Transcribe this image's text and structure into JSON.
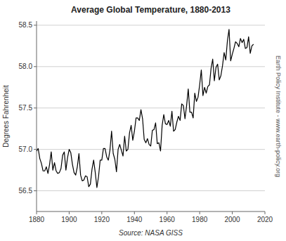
{
  "chart_data": {
    "type": "line",
    "title": "Average Global Temperature, 1880-2013",
    "xlabel": "Source: NASA GISS",
    "ylabel": "Degrees Fahrenheit",
    "annotation": "Earth Policy Institute - www.earth-policy.org",
    "color": "#000000",
    "grid": true,
    "xlim": [
      1880,
      2020
    ],
    "ylim": [
      56.25,
      58.55
    ],
    "xticks": [
      1880,
      1900,
      1920,
      1940,
      1960,
      1980,
      2000,
      2020
    ],
    "yticks": [
      56.5,
      {
        "value": 57,
        "label": "57.0"
      },
      57.5,
      {
        "value": 58,
        "label": "58.0"
      },
      58.5
    ],
    "x": [
      1880,
      1881,
      1882,
      1883,
      1884,
      1885,
      1886,
      1887,
      1888,
      1889,
      1890,
      1891,
      1892,
      1893,
      1894,
      1895,
      1896,
      1897,
      1898,
      1899,
      1900,
      1901,
      1902,
      1903,
      1904,
      1905,
      1906,
      1907,
      1908,
      1909,
      1910,
      1911,
      1912,
      1913,
      1914,
      1915,
      1916,
      1917,
      1918,
      1919,
      1920,
      1921,
      1922,
      1923,
      1924,
      1925,
      1926,
      1927,
      1928,
      1929,
      1930,
      1931,
      1932,
      1933,
      1934,
      1935,
      1936,
      1937,
      1938,
      1939,
      1940,
      1941,
      1942,
      1943,
      1944,
      1945,
      1946,
      1947,
      1948,
      1949,
      1950,
      1951,
      1952,
      1953,
      1954,
      1955,
      1956,
      1957,
      1958,
      1959,
      1960,
      1961,
      1962,
      1963,
      1964,
      1965,
      1966,
      1967,
      1968,
      1969,
      1970,
      1971,
      1972,
      1973,
      1974,
      1975,
      1976,
      1977,
      1978,
      1979,
      1980,
      1981,
      1982,
      1983,
      1984,
      1985,
      1986,
      1987,
      1988,
      1989,
      1990,
      1991,
      1992,
      1993,
      1994,
      1995,
      1996,
      1997,
      1998,
      1999,
      2000,
      2001,
      2002,
      2003,
      2004,
      2005,
      2006,
      2007,
      2008,
      2009,
      2010,
      2011,
      2012,
      2013
    ],
    "values": [
      56.98,
      57.01,
      56.89,
      56.83,
      56.74,
      56.74,
      56.79,
      56.71,
      56.82,
      56.97,
      56.75,
      56.84,
      56.74,
      56.71,
      56.72,
      56.77,
      56.93,
      56.97,
      56.75,
      56.9,
      57.0,
      56.96,
      56.82,
      56.72,
      56.69,
      56.79,
      56.95,
      56.69,
      56.62,
      56.63,
      56.68,
      56.67,
      56.55,
      56.58,
      56.76,
      56.87,
      56.72,
      56.54,
      56.67,
      56.87,
      56.87,
      57.01,
      57.01,
      56.91,
      56.87,
      56.99,
      57.22,
      56.95,
      56.88,
      56.73,
      57.0,
      57.06,
      56.99,
      56.92,
      57.16,
      56.98,
      57.0,
      57.2,
      57.29,
      57.11,
      57.22,
      57.38,
      57.38,
      57.35,
      57.48,
      57.37,
      57.12,
      57.08,
      57.13,
      57.06,
      57.04,
      57.23,
      57.24,
      57.32,
      57.07,
      57.08,
      56.98,
      57.29,
      57.42,
      57.31,
      57.3,
      57.35,
      57.28,
      57.46,
      57.22,
      57.24,
      57.33,
      57.4,
      57.35,
      57.55,
      57.53,
      57.37,
      57.53,
      57.73,
      57.45,
      57.45,
      57.38,
      57.68,
      57.58,
      57.63,
      57.78,
      57.96,
      57.65,
      57.75,
      57.68,
      57.76,
      57.78,
      57.98,
      58.09,
      57.83,
      57.99,
      58.03,
      57.84,
      57.89,
      58.01,
      58.17,
      58.08,
      58.31,
      58.45,
      58.07,
      58.15,
      58.22,
      58.3,
      58.28,
      58.24,
      58.34,
      58.29,
      58.33,
      58.22,
      58.23,
      58.36,
      58.16,
      58.25,
      58.27
    ]
  }
}
